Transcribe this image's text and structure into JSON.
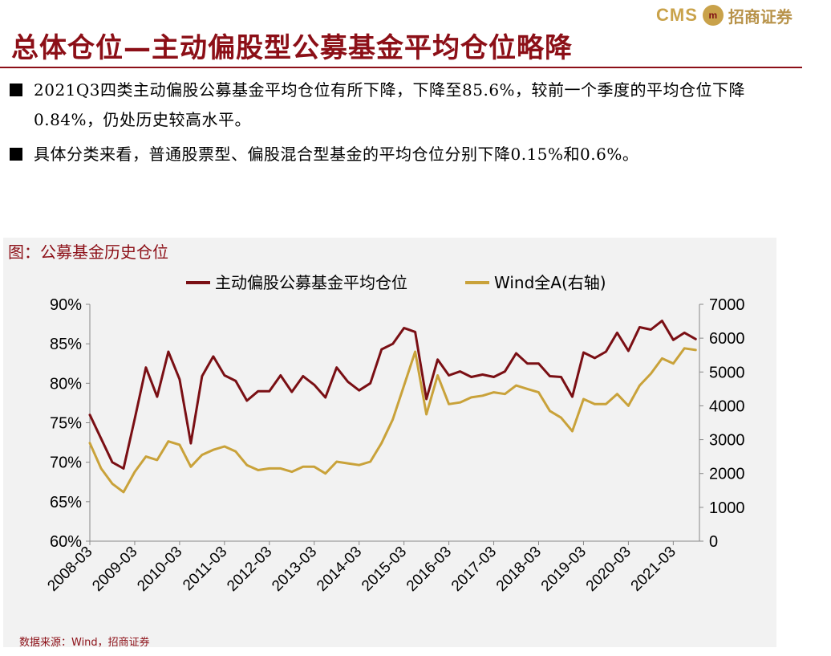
{
  "logo": {
    "cms": "CMS",
    "mark": "m",
    "name": "招商证券"
  },
  "page": {
    "title": "总体仓位—主动偏股型公募基金平均仓位略降",
    "bullets": [
      "2021Q3四类主动偏股公募基金平均仓位有所下降，下降至85.6%，较前一个季度的平均仓位下降0.84%，仍处历史较高水平。",
      "具体分类来看，普通股票型、偏股混合型基金的平均仓位分别下降0.15%和0.6%。"
    ],
    "chart_caption": "图：公募基金历史仓位",
    "source": "数据来源：Wind，招商证券"
  },
  "colors": {
    "title": "#8c0f17",
    "position_line": "#7a0f14",
    "wind_line": "#c9a23a",
    "chart_bg": "#f2f2f2"
  },
  "chart_data": {
    "type": "line",
    "x_tick_labels": [
      "2008-03",
      "2009-03",
      "2010-03",
      "2011-03",
      "2012-03",
      "2013-03",
      "2014-03",
      "2015-03",
      "2016-03",
      "2017-03",
      "2018-03",
      "2019-03",
      "2020-03",
      "2021-03"
    ],
    "x_start": "2008-03",
    "frequency": "monthly-sampled",
    "left_axis": {
      "ylim": [
        60,
        90
      ],
      "ticks": [
        "60%",
        "65%",
        "70%",
        "75%",
        "80%",
        "85%",
        "90%"
      ]
    },
    "right_axis": {
      "ylim": [
        0,
        7000
      ],
      "ticks": [
        "0",
        "1000",
        "2000",
        "3000",
        "4000",
        "5000",
        "6000",
        "7000"
      ]
    },
    "legend_position": "top",
    "grid": false,
    "series": [
      {
        "name": "主动偏股公募基金平均仓位",
        "axis": "left",
        "points": [
          [
            "2008-03",
            76.0
          ],
          [
            "2008-06",
            73.0
          ],
          [
            "2008-09",
            70.0
          ],
          [
            "2008-12",
            69.2
          ],
          [
            "2009-03",
            75.5
          ],
          [
            "2009-06",
            82.0
          ],
          [
            "2009-09",
            78.3
          ],
          [
            "2009-12",
            84.0
          ],
          [
            "2010-03",
            80.5
          ],
          [
            "2010-06",
            72.4
          ],
          [
            "2010-09",
            80.9
          ],
          [
            "2010-12",
            83.4
          ],
          [
            "2011-03",
            81.0
          ],
          [
            "2011-06",
            80.3
          ],
          [
            "2011-09",
            77.8
          ],
          [
            "2011-12",
            79.0
          ],
          [
            "2012-03",
            79.0
          ],
          [
            "2012-06",
            81.0
          ],
          [
            "2012-09",
            78.9
          ],
          [
            "2012-12",
            80.9
          ],
          [
            "2013-03",
            79.8
          ],
          [
            "2013-06",
            78.2
          ],
          [
            "2013-09",
            82.0
          ],
          [
            "2013-12",
            80.2
          ],
          [
            "2014-03",
            79.1
          ],
          [
            "2014-06",
            80.0
          ],
          [
            "2014-09",
            84.3
          ],
          [
            "2014-12",
            85.0
          ],
          [
            "2015-03",
            87.0
          ],
          [
            "2015-06",
            86.5
          ],
          [
            "2015-09",
            78.0
          ],
          [
            "2015-12",
            83.0
          ],
          [
            "2016-03",
            81.0
          ],
          [
            "2016-06",
            81.5
          ],
          [
            "2016-09",
            80.8
          ],
          [
            "2016-12",
            81.1
          ],
          [
            "2017-03",
            80.8
          ],
          [
            "2017-06",
            81.5
          ],
          [
            "2017-09",
            83.8
          ],
          [
            "2017-12",
            82.5
          ],
          [
            "2018-03",
            82.5
          ],
          [
            "2018-06",
            80.9
          ],
          [
            "2018-09",
            80.8
          ],
          [
            "2018-12",
            78.3
          ],
          [
            "2019-03",
            83.9
          ],
          [
            "2019-06",
            83.2
          ],
          [
            "2019-09",
            84.0
          ],
          [
            "2019-12",
            86.4
          ],
          [
            "2020-03",
            84.1
          ],
          [
            "2020-06",
            87.1
          ],
          [
            "2020-09",
            86.8
          ],
          [
            "2020-12",
            87.9
          ],
          [
            "2021-03",
            85.5
          ],
          [
            "2021-06",
            86.4
          ],
          [
            "2021-09",
            85.6
          ]
        ]
      },
      {
        "name": "Wind全A(右轴)",
        "axis": "right",
        "points": [
          [
            "2008-03",
            2900
          ],
          [
            "2008-06",
            2150
          ],
          [
            "2008-09",
            1700
          ],
          [
            "2008-12",
            1450
          ],
          [
            "2009-03",
            2050
          ],
          [
            "2009-06",
            2500
          ],
          [
            "2009-09",
            2400
          ],
          [
            "2009-12",
            2950
          ],
          [
            "2010-03",
            2850
          ],
          [
            "2010-06",
            2200
          ],
          [
            "2010-09",
            2550
          ],
          [
            "2010-12",
            2700
          ],
          [
            "2011-03",
            2800
          ],
          [
            "2011-06",
            2650
          ],
          [
            "2011-09",
            2250
          ],
          [
            "2011-12",
            2100
          ],
          [
            "2012-03",
            2150
          ],
          [
            "2012-06",
            2150
          ],
          [
            "2012-09",
            2050
          ],
          [
            "2012-12",
            2200
          ],
          [
            "2013-03",
            2200
          ],
          [
            "2013-06",
            2000
          ],
          [
            "2013-09",
            2350
          ],
          [
            "2013-12",
            2300
          ],
          [
            "2014-03",
            2250
          ],
          [
            "2014-06",
            2350
          ],
          [
            "2014-09",
            2900
          ],
          [
            "2014-12",
            3600
          ],
          [
            "2015-03",
            4600
          ],
          [
            "2015-06",
            5600
          ],
          [
            "2015-09",
            3750
          ],
          [
            "2015-12",
            4900
          ],
          [
            "2016-03",
            4050
          ],
          [
            "2016-06",
            4100
          ],
          [
            "2016-09",
            4250
          ],
          [
            "2016-12",
            4300
          ],
          [
            "2017-03",
            4400
          ],
          [
            "2017-06",
            4350
          ],
          [
            "2017-09",
            4600
          ],
          [
            "2017-12",
            4500
          ],
          [
            "2018-03",
            4400
          ],
          [
            "2018-06",
            3850
          ],
          [
            "2018-09",
            3650
          ],
          [
            "2018-12",
            3250
          ],
          [
            "2019-03",
            4200
          ],
          [
            "2019-06",
            4050
          ],
          [
            "2019-09",
            4050
          ],
          [
            "2019-12",
            4350
          ],
          [
            "2020-03",
            4000
          ],
          [
            "2020-06",
            4600
          ],
          [
            "2020-09",
            4950
          ],
          [
            "2020-12",
            5400
          ],
          [
            "2021-03",
            5250
          ],
          [
            "2021-06",
            5700
          ],
          [
            "2021-09",
            5650
          ]
        ]
      }
    ]
  }
}
